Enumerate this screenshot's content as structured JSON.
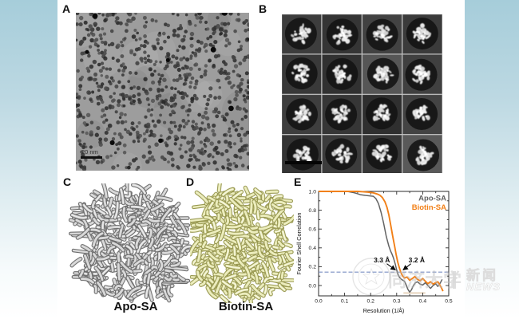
{
  "panels": {
    "a": {
      "label": "A",
      "scale_bar_text": "20 nm"
    },
    "b": {
      "label": "B"
    },
    "c": {
      "label": "C",
      "caption": "Apo-SA"
    },
    "d": {
      "label": "D",
      "caption": "Biotin-SA"
    },
    "e": {
      "label": "E"
    }
  },
  "watermarks": {
    "site_name_cn": "新闻",
    "site_name_en": "NEWS",
    "separator": "|",
    "seal_text": "同济大学"
  },
  "colors": {
    "apo_gray": "#636363",
    "biotin_orange": "#f28018",
    "threshold_blue": "#7b8fc4",
    "accent_teal": "#a6cdda",
    "map_c_fill": "#d9d9d9",
    "map_c_edge": "#6b6b6b",
    "map_d_fill": "#ecedbd",
    "map_d_edge": "#97974f"
  },
  "chart_data": {
    "type": "line",
    "title": "",
    "xlabel": "Resolution (1/Å)",
    "ylabel": "Fourier Shell Correlation",
    "xlim": [
      0.0,
      0.5
    ],
    "ylim": [
      -0.11,
      1.0
    ],
    "xticks": [
      0.0,
      0.1,
      0.2,
      0.3,
      0.4,
      0.5
    ],
    "yticks": [
      0.0,
      0.2,
      0.4,
      0.6,
      0.8,
      1.0
    ],
    "grid": false,
    "legend_position": "top-right",
    "threshold": {
      "y": 0.143,
      "style": "dashed"
    },
    "annotations": [
      {
        "text": "3.3 Å",
        "x": 0.302,
        "y": 0.155,
        "side": "left"
      },
      {
        "text": "3.2 Å",
        "x": 0.318,
        "y": 0.155,
        "side": "right"
      }
    ],
    "series": [
      {
        "name": "Apo-SA",
        "color": "#636363",
        "points": [
          [
            0.0,
            1.0
          ],
          [
            0.03,
            1.0
          ],
          [
            0.06,
            1.0
          ],
          [
            0.09,
            1.0
          ],
          [
            0.11,
            1.0
          ],
          [
            0.13,
            0.99
          ],
          [
            0.145,
            0.98
          ],
          [
            0.16,
            0.965
          ],
          [
            0.18,
            0.958
          ],
          [
            0.2,
            0.952
          ],
          [
            0.21,
            0.948
          ],
          [
            0.22,
            0.925
          ],
          [
            0.23,
            0.87
          ],
          [
            0.24,
            0.78
          ],
          [
            0.25,
            0.66
          ],
          [
            0.26,
            0.52
          ],
          [
            0.27,
            0.42
          ],
          [
            0.276,
            0.37
          ],
          [
            0.282,
            0.335
          ],
          [
            0.288,
            0.29
          ],
          [
            0.294,
            0.235
          ],
          [
            0.3,
            0.165
          ],
          [
            0.305,
            0.12
          ],
          [
            0.31,
            0.09
          ],
          [
            0.317,
            0.07
          ],
          [
            0.324,
            0.055
          ],
          [
            0.33,
            0.045
          ],
          [
            0.336,
            0.01
          ],
          [
            0.343,
            -0.04
          ],
          [
            0.35,
            -0.07
          ],
          [
            0.357,
            -0.045
          ],
          [
            0.364,
            0.0
          ],
          [
            0.372,
            0.03
          ],
          [
            0.38,
            0.04
          ],
          [
            0.39,
            0.015
          ],
          [
            0.4,
            0.005
          ],
          [
            0.41,
            0.03
          ],
          [
            0.42,
            0.0
          ],
          [
            0.43,
            -0.03
          ],
          [
            0.44,
            0.0
          ],
          [
            0.45,
            0.02
          ],
          [
            0.458,
            -0.01
          ],
          [
            0.466,
            0.02
          ],
          [
            0.475,
            0.065
          ]
        ]
      },
      {
        "name": "Biotin-SA",
        "color": "#f28018",
        "points": [
          [
            0.0,
            1.0
          ],
          [
            0.04,
            1.0
          ],
          [
            0.08,
            1.0
          ],
          [
            0.12,
            1.0
          ],
          [
            0.15,
            1.0
          ],
          [
            0.17,
            0.997
          ],
          [
            0.19,
            0.992
          ],
          [
            0.21,
            0.985
          ],
          [
            0.225,
            0.972
          ],
          [
            0.235,
            0.96
          ],
          [
            0.245,
            0.935
          ],
          [
            0.255,
            0.89
          ],
          [
            0.263,
            0.83
          ],
          [
            0.27,
            0.75
          ],
          [
            0.278,
            0.63
          ],
          [
            0.285,
            0.52
          ],
          [
            0.292,
            0.42
          ],
          [
            0.298,
            0.33
          ],
          [
            0.304,
            0.25
          ],
          [
            0.31,
            0.19
          ],
          [
            0.316,
            0.14
          ],
          [
            0.322,
            0.105
          ],
          [
            0.33,
            0.08
          ],
          [
            0.34,
            0.09
          ],
          [
            0.35,
            0.055
          ],
          [
            0.36,
            0.075
          ],
          [
            0.37,
            0.095
          ],
          [
            0.38,
            0.065
          ],
          [
            0.39,
            0.05
          ],
          [
            0.4,
            0.075
          ],
          [
            0.41,
            0.045
          ],
          [
            0.42,
            0.02
          ],
          [
            0.43,
            0.04
          ],
          [
            0.44,
            0.015
          ],
          [
            0.45,
            0.03
          ],
          [
            0.458,
            0.04
          ],
          [
            0.465,
            0.01
          ],
          [
            0.472,
            -0.025
          ],
          [
            0.478,
            -0.06
          ]
        ]
      }
    ]
  }
}
